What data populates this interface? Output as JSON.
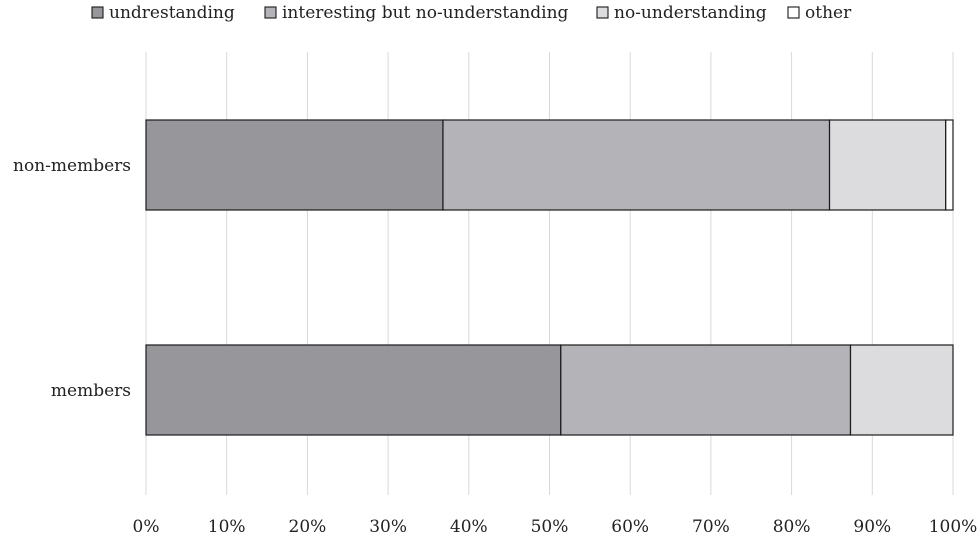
{
  "chart_data": {
    "type": "bar",
    "orientation": "horizontal",
    "stacked": true,
    "percent": true,
    "categories": [
      "non-members",
      "members"
    ],
    "series": [
      {
        "name": "undrestanding",
        "values": [
          36.8,
          51.4
        ],
        "color": "#97979b"
      },
      {
        "name": "interesting but no-understanding",
        "values": [
          47.9,
          35.9
        ],
        "color": "#b4b4b8"
      },
      {
        "name": "no-understanding",
        "values": [
          14.4,
          12.7
        ],
        "color": "#dcdcde"
      },
      {
        "name": "other",
        "values": [
          0.9,
          0.0
        ],
        "color": "#ffffff"
      }
    ],
    "xlim": [
      0,
      100
    ],
    "x_ticks": [
      "0%",
      "10%",
      "20%",
      "30%",
      "40%",
      "50%",
      "60%",
      "70%",
      "80%",
      "90%",
      "100%"
    ],
    "grid": true,
    "legend_position": "top"
  }
}
